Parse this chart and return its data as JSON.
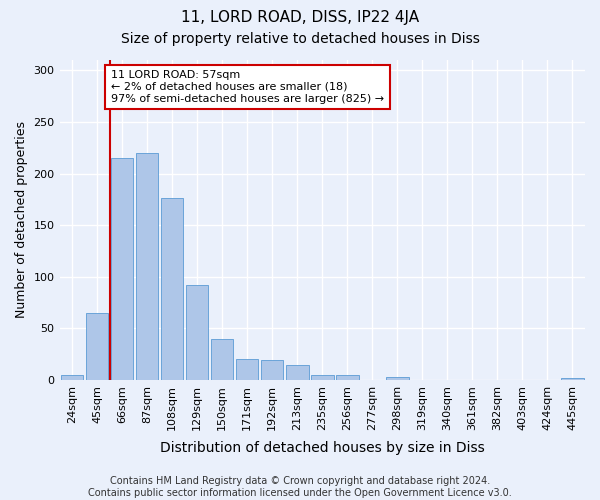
{
  "title": "11, LORD ROAD, DISS, IP22 4JA",
  "subtitle": "Size of property relative to detached houses in Diss",
  "xlabel": "Distribution of detached houses by size in Diss",
  "ylabel": "Number of detached properties",
  "categories": [
    "24sqm",
    "45sqm",
    "66sqm",
    "87sqm",
    "108sqm",
    "129sqm",
    "150sqm",
    "171sqm",
    "192sqm",
    "213sqm",
    "235sqm",
    "256sqm",
    "277sqm",
    "298sqm",
    "319sqm",
    "340sqm",
    "361sqm",
    "382sqm",
    "403sqm",
    "424sqm",
    "445sqm"
  ],
  "values": [
    5,
    65,
    215,
    220,
    176,
    92,
    40,
    20,
    19,
    14,
    5,
    5,
    0,
    3,
    0,
    0,
    0,
    0,
    0,
    0,
    2
  ],
  "bar_color": "#aec6e8",
  "bar_edge_color": "#5b9bd5",
  "vline_x": 1.5,
  "vline_color": "#cc0000",
  "annotation_text": "11 LORD ROAD: 57sqm\n← 2% of detached houses are smaller (18)\n97% of semi-detached houses are larger (825) →",
  "annotation_box_color": "#ffffff",
  "annotation_box_edge_color": "#cc0000",
  "ylim": [
    0,
    310
  ],
  "yticks": [
    0,
    50,
    100,
    150,
    200,
    250,
    300
  ],
  "background_color": "#eaf0fb",
  "footer": "Contains HM Land Registry data © Crown copyright and database right 2024.\nContains public sector information licensed under the Open Government Licence v3.0.",
  "title_fontsize": 11,
  "subtitle_fontsize": 10,
  "xlabel_fontsize": 10,
  "ylabel_fontsize": 9,
  "tick_fontsize": 8,
  "footer_fontsize": 7,
  "annotation_fontsize": 8
}
